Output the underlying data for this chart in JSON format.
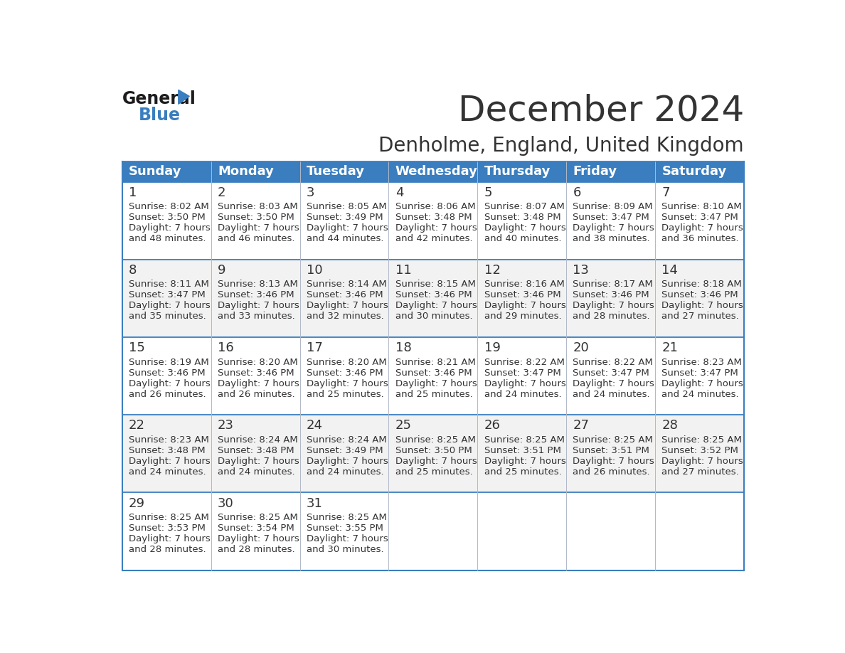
{
  "title": "December 2024",
  "subtitle": "Denholme, England, United Kingdom",
  "header_color": "#3a7ebf",
  "header_text_color": "#ffffff",
  "day_headers": [
    "Sunday",
    "Monday",
    "Tuesday",
    "Wednesday",
    "Thursday",
    "Friday",
    "Saturday"
  ],
  "calendar_data": [
    [
      {
        "day": 1,
        "sunrise": "8:02 AM",
        "sunset": "3:50 PM",
        "daylight_hours": 7,
        "daylight_minutes": 48
      },
      {
        "day": 2,
        "sunrise": "8:03 AM",
        "sunset": "3:50 PM",
        "daylight_hours": 7,
        "daylight_minutes": 46
      },
      {
        "day": 3,
        "sunrise": "8:05 AM",
        "sunset": "3:49 PM",
        "daylight_hours": 7,
        "daylight_minutes": 44
      },
      {
        "day": 4,
        "sunrise": "8:06 AM",
        "sunset": "3:48 PM",
        "daylight_hours": 7,
        "daylight_minutes": 42
      },
      {
        "day": 5,
        "sunrise": "8:07 AM",
        "sunset": "3:48 PM",
        "daylight_hours": 7,
        "daylight_minutes": 40
      },
      {
        "day": 6,
        "sunrise": "8:09 AM",
        "sunset": "3:47 PM",
        "daylight_hours": 7,
        "daylight_minutes": 38
      },
      {
        "day": 7,
        "sunrise": "8:10 AM",
        "sunset": "3:47 PM",
        "daylight_hours": 7,
        "daylight_minutes": 36
      }
    ],
    [
      {
        "day": 8,
        "sunrise": "8:11 AM",
        "sunset": "3:47 PM",
        "daylight_hours": 7,
        "daylight_minutes": 35
      },
      {
        "day": 9,
        "sunrise": "8:13 AM",
        "sunset": "3:46 PM",
        "daylight_hours": 7,
        "daylight_minutes": 33
      },
      {
        "day": 10,
        "sunrise": "8:14 AM",
        "sunset": "3:46 PM",
        "daylight_hours": 7,
        "daylight_minutes": 32
      },
      {
        "day": 11,
        "sunrise": "8:15 AM",
        "sunset": "3:46 PM",
        "daylight_hours": 7,
        "daylight_minutes": 30
      },
      {
        "day": 12,
        "sunrise": "8:16 AM",
        "sunset": "3:46 PM",
        "daylight_hours": 7,
        "daylight_minutes": 29
      },
      {
        "day": 13,
        "sunrise": "8:17 AM",
        "sunset": "3:46 PM",
        "daylight_hours": 7,
        "daylight_minutes": 28
      },
      {
        "day": 14,
        "sunrise": "8:18 AM",
        "sunset": "3:46 PM",
        "daylight_hours": 7,
        "daylight_minutes": 27
      }
    ],
    [
      {
        "day": 15,
        "sunrise": "8:19 AM",
        "sunset": "3:46 PM",
        "daylight_hours": 7,
        "daylight_minutes": 26
      },
      {
        "day": 16,
        "sunrise": "8:20 AM",
        "sunset": "3:46 PM",
        "daylight_hours": 7,
        "daylight_minutes": 26
      },
      {
        "day": 17,
        "sunrise": "8:20 AM",
        "sunset": "3:46 PM",
        "daylight_hours": 7,
        "daylight_minutes": 25
      },
      {
        "day": 18,
        "sunrise": "8:21 AM",
        "sunset": "3:46 PM",
        "daylight_hours": 7,
        "daylight_minutes": 25
      },
      {
        "day": 19,
        "sunrise": "8:22 AM",
        "sunset": "3:47 PM",
        "daylight_hours": 7,
        "daylight_minutes": 24
      },
      {
        "day": 20,
        "sunrise": "8:22 AM",
        "sunset": "3:47 PM",
        "daylight_hours": 7,
        "daylight_minutes": 24
      },
      {
        "day": 21,
        "sunrise": "8:23 AM",
        "sunset": "3:47 PM",
        "daylight_hours": 7,
        "daylight_minutes": 24
      }
    ],
    [
      {
        "day": 22,
        "sunrise": "8:23 AM",
        "sunset": "3:48 PM",
        "daylight_hours": 7,
        "daylight_minutes": 24
      },
      {
        "day": 23,
        "sunrise": "8:24 AM",
        "sunset": "3:48 PM",
        "daylight_hours": 7,
        "daylight_minutes": 24
      },
      {
        "day": 24,
        "sunrise": "8:24 AM",
        "sunset": "3:49 PM",
        "daylight_hours": 7,
        "daylight_minutes": 24
      },
      {
        "day": 25,
        "sunrise": "8:25 AM",
        "sunset": "3:50 PM",
        "daylight_hours": 7,
        "daylight_minutes": 25
      },
      {
        "day": 26,
        "sunrise": "8:25 AM",
        "sunset": "3:51 PM",
        "daylight_hours": 7,
        "daylight_minutes": 25
      },
      {
        "day": 27,
        "sunrise": "8:25 AM",
        "sunset": "3:51 PM",
        "daylight_hours": 7,
        "daylight_minutes": 26
      },
      {
        "day": 28,
        "sunrise": "8:25 AM",
        "sunset": "3:52 PM",
        "daylight_hours": 7,
        "daylight_minutes": 27
      }
    ],
    [
      {
        "day": 29,
        "sunrise": "8:25 AM",
        "sunset": "3:53 PM",
        "daylight_hours": 7,
        "daylight_minutes": 28
      },
      {
        "day": 30,
        "sunrise": "8:25 AM",
        "sunset": "3:54 PM",
        "daylight_hours": 7,
        "daylight_minutes": 28
      },
      {
        "day": 31,
        "sunrise": "8:25 AM",
        "sunset": "3:55 PM",
        "daylight_hours": 7,
        "daylight_minutes": 30
      },
      null,
      null,
      null,
      null
    ]
  ],
  "text_color": "#333333",
  "border_color": "#3a7ebf",
  "cell_line_color": "#b0b8c8",
  "header_font_size": 13,
  "day_num_font_size": 13,
  "cell_font_size": 9.5,
  "title_font_size": 36,
  "subtitle_font_size": 20,
  "logo_general_size": 17,
  "logo_blue_size": 17
}
